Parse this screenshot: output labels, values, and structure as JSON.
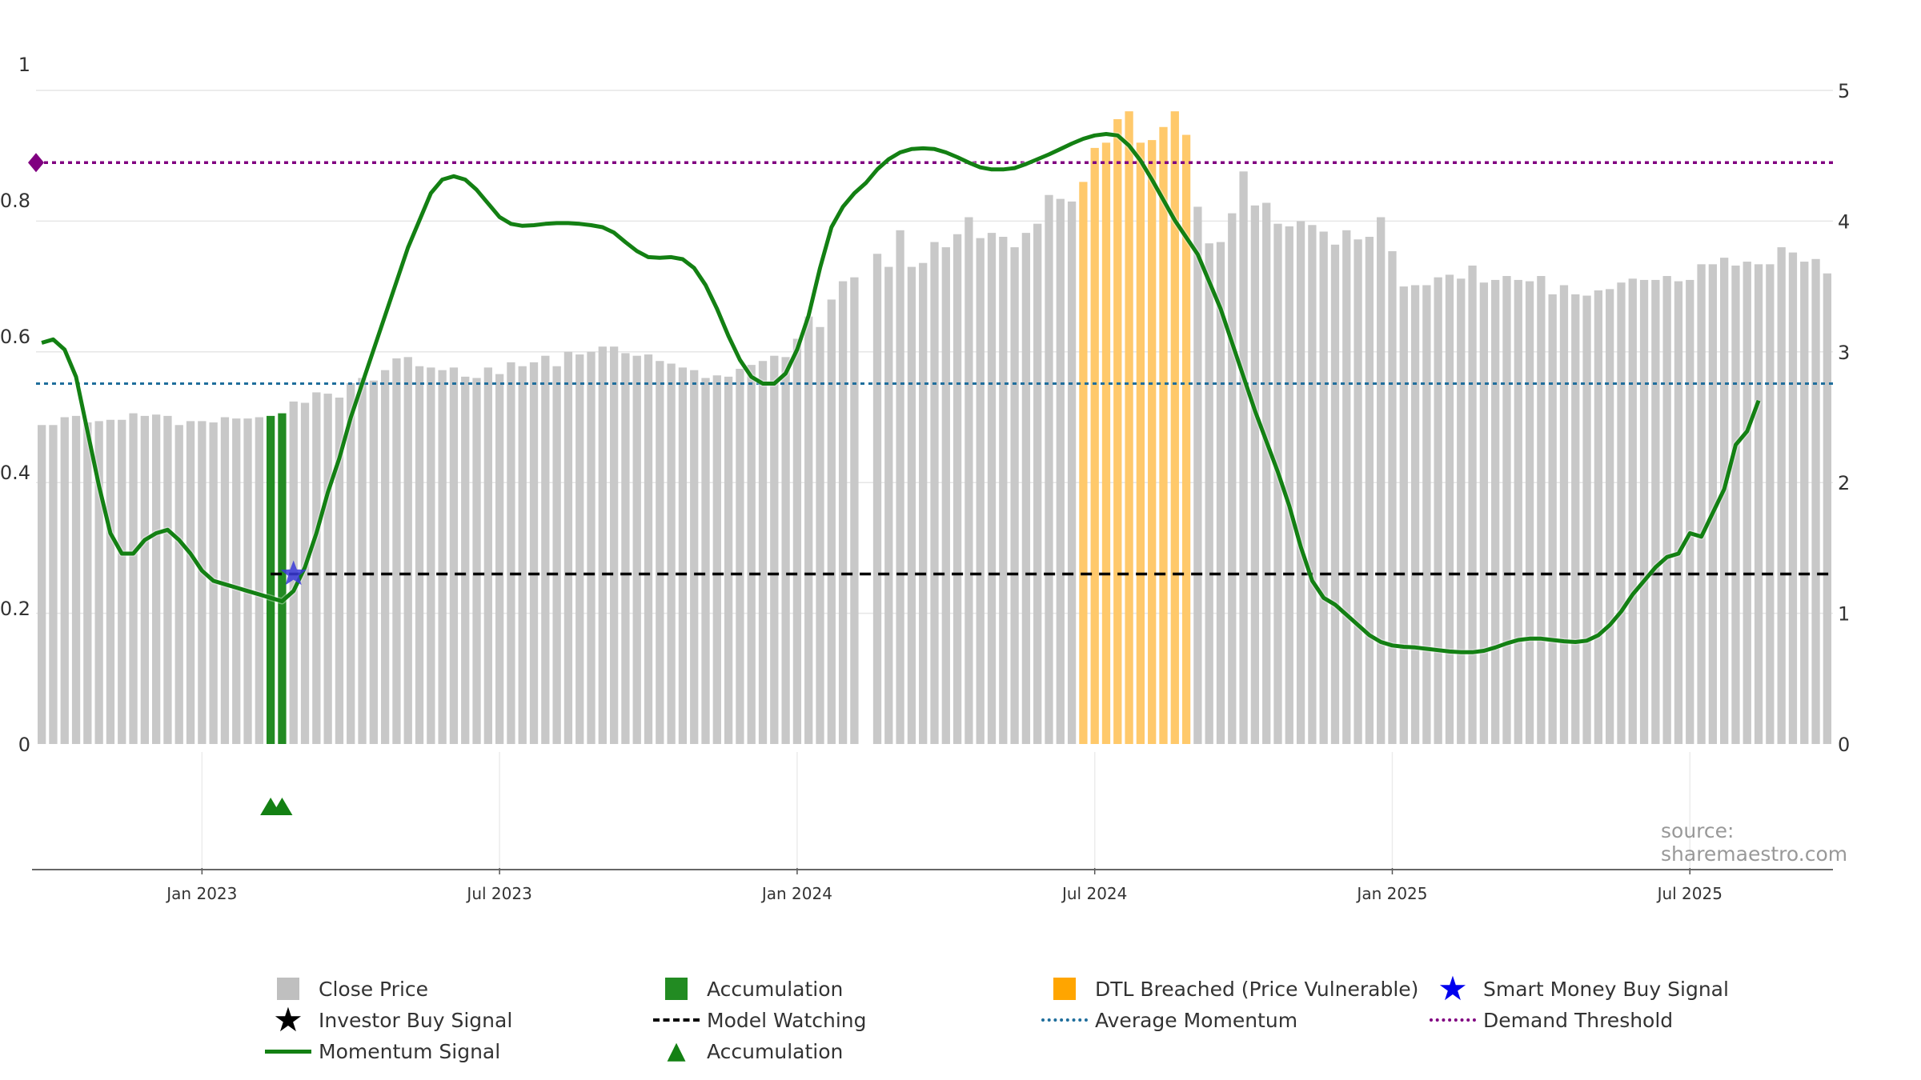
{
  "chart_data": {
    "type": "bar+line",
    "source": "source: sharemaestro.com",
    "left_axis": {
      "min": 0,
      "max": 1,
      "ticks": [
        "0",
        "0.2",
        "0.4",
        "0.6",
        "0.8",
        "1"
      ]
    },
    "right_axis": {
      "min": 0,
      "max": 5,
      "ticks": [
        "0",
        "1",
        "2",
        "3",
        "4",
        "5"
      ]
    },
    "x_axis": {
      "ticks": [
        {
          "label": "Jan 2023",
          "week": 14
        },
        {
          "label": "Jul 2023",
          "week": 40
        },
        {
          "label": "Jan 2024",
          "week": 66
        },
        {
          "label": "Jul 2024",
          "week": 92
        },
        {
          "label": "Jan 2025",
          "week": 118
        },
        {
          "label": "Jul 2025",
          "week": 144
        }
      ]
    },
    "close_price": [
      2.44,
      2.44,
      2.5,
      2.51,
      2.46,
      2.47,
      2.48,
      2.48,
      2.53,
      2.51,
      2.52,
      2.51,
      2.44,
      2.47,
      2.47,
      2.46,
      2.5,
      2.49,
      2.49,
      2.5,
      2.51,
      2.53,
      2.62,
      2.61,
      2.69,
      2.68,
      2.65,
      2.76,
      2.8,
      2.78,
      2.86,
      2.95,
      2.96,
      2.89,
      2.88,
      2.86,
      2.88,
      2.81,
      2.8,
      2.88,
      2.83,
      2.92,
      2.89,
      2.92,
      2.97,
      2.89,
      3.0,
      2.98,
      3.0,
      3.04,
      3.04,
      2.99,
      2.97,
      2.98,
      2.93,
      2.91,
      2.88,
      2.86,
      2.8,
      2.82,
      2.81,
      2.87,
      2.9,
      2.93,
      2.97,
      2.96,
      3.1,
      3.27,
      3.19,
      3.4,
      3.54,
      3.57,
      0,
      3.75,
      3.65,
      3.93,
      3.65,
      3.68,
      3.84,
      3.8,
      3.9,
      4.03,
      3.87,
      3.91,
      3.88,
      3.8,
      3.91,
      3.98,
      4.2,
      4.17,
      4.15,
      4.3,
      4.56,
      4.6,
      4.78,
      4.84,
      4.6,
      4.62,
      4.72,
      4.84,
      4.66,
      4.11,
      3.83,
      3.84,
      4.06,
      4.38,
      4.12,
      4.14,
      3.98,
      3.96,
      4.0,
      3.97,
      3.92,
      3.82,
      3.93,
      3.86,
      3.88,
      4.03,
      3.77,
      3.5,
      3.51,
      3.51,
      3.57,
      3.59,
      3.56,
      3.66,
      3.53,
      3.55,
      3.58,
      3.55,
      3.54,
      3.58,
      3.44,
      3.51,
      3.44,
      3.43,
      3.47,
      3.48,
      3.53,
      3.56,
      3.55,
      3.55,
      3.58,
      3.54,
      3.55,
      3.67,
      3.67,
      3.72,
      3.66,
      3.69,
      3.67,
      3.67,
      3.8,
      3.76,
      3.69,
      3.71,
      3.6
    ],
    "accumulation_bars": [
      20,
      21
    ],
    "dtl_breached_bars": [
      91,
      92,
      93,
      94,
      95,
      96,
      97,
      98,
      99,
      100
    ],
    "momentum_signal": [
      [
        0,
        0.59
      ],
      [
        1,
        0.595
      ],
      [
        2,
        0.58
      ],
      [
        3,
        0.54
      ],
      [
        4,
        0.46
      ],
      [
        5,
        0.38
      ],
      [
        6,
        0.31
      ],
      [
        7,
        0.28
      ],
      [
        8,
        0.28
      ],
      [
        9,
        0.3
      ],
      [
        10,
        0.31
      ],
      [
        11,
        0.315
      ],
      [
        12,
        0.3
      ],
      [
        13,
        0.28
      ],
      [
        14,
        0.255
      ],
      [
        15,
        0.24
      ],
      [
        16,
        0.235
      ],
      [
        17,
        0.23
      ],
      [
        18,
        0.225
      ],
      [
        19,
        0.22
      ],
      [
        20,
        0.215
      ],
      [
        21,
        0.21
      ],
      [
        22,
        0.225
      ],
      [
        23,
        0.26
      ],
      [
        24,
        0.31
      ],
      [
        25,
        0.37
      ],
      [
        26,
        0.42
      ],
      [
        27,
        0.48
      ],
      [
        28,
        0.53
      ],
      [
        29,
        0.58
      ],
      [
        30,
        0.63
      ],
      [
        31,
        0.68
      ],
      [
        32,
        0.73
      ],
      [
        33,
        0.77
      ],
      [
        34,
        0.81
      ],
      [
        35,
        0.83
      ],
      [
        36,
        0.835
      ],
      [
        37,
        0.83
      ],
      [
        38,
        0.815
      ],
      [
        39,
        0.795
      ],
      [
        40,
        0.775
      ],
      [
        41,
        0.765
      ],
      [
        42,
        0.762
      ],
      [
        43,
        0.763
      ],
      [
        44,
        0.765
      ],
      [
        45,
        0.766
      ],
      [
        46,
        0.766
      ],
      [
        47,
        0.765
      ],
      [
        48,
        0.763
      ],
      [
        49,
        0.76
      ],
      [
        50,
        0.752
      ],
      [
        51,
        0.738
      ],
      [
        52,
        0.725
      ],
      [
        53,
        0.716
      ],
      [
        54,
        0.715
      ],
      [
        55,
        0.716
      ],
      [
        56,
        0.713
      ],
      [
        57,
        0.7
      ],
      [
        58,
        0.675
      ],
      [
        59,
        0.64
      ],
      [
        60,
        0.6
      ],
      [
        61,
        0.565
      ],
      [
        62,
        0.54
      ],
      [
        63,
        0.53
      ],
      [
        64,
        0.53
      ],
      [
        65,
        0.545
      ],
      [
        66,
        0.58
      ],
      [
        67,
        0.63
      ],
      [
        68,
        0.7
      ],
      [
        69,
        0.76
      ],
      [
        70,
        0.79
      ],
      [
        71,
        0.81
      ],
      [
        72,
        0.825
      ],
      [
        73,
        0.845
      ],
      [
        74,
        0.86
      ],
      [
        75,
        0.87
      ],
      [
        76,
        0.875
      ],
      [
        77,
        0.876
      ],
      [
        78,
        0.875
      ],
      [
        79,
        0.87
      ],
      [
        80,
        0.863
      ],
      [
        81,
        0.855
      ],
      [
        82,
        0.848
      ],
      [
        83,
        0.845
      ],
      [
        84,
        0.845
      ],
      [
        85,
        0.847
      ],
      [
        86,
        0.853
      ],
      [
        87,
        0.86
      ],
      [
        88,
        0.867
      ],
      [
        89,
        0.875
      ],
      [
        90,
        0.883
      ],
      [
        91,
        0.89
      ],
      [
        92,
        0.895
      ],
      [
        93,
        0.897
      ],
      [
        94,
        0.895
      ],
      [
        95,
        0.88
      ],
      [
        96,
        0.858
      ],
      [
        97,
        0.83
      ],
      [
        98,
        0.8
      ],
      [
        99,
        0.77
      ],
      [
        100,
        0.745
      ],
      [
        101,
        0.72
      ],
      [
        102,
        0.68
      ],
      [
        103,
        0.64
      ],
      [
        104,
        0.59
      ],
      [
        105,
        0.54
      ],
      [
        106,
        0.49
      ],
      [
        107,
        0.445
      ],
      [
        108,
        0.4
      ],
      [
        109,
        0.35
      ],
      [
        110,
        0.29
      ],
      [
        111,
        0.24
      ],
      [
        112,
        0.215
      ],
      [
        113,
        0.205
      ],
      [
        114,
        0.19
      ],
      [
        115,
        0.175
      ],
      [
        116,
        0.16
      ],
      [
        117,
        0.15
      ],
      [
        118,
        0.145
      ],
      [
        119,
        0.143
      ],
      [
        120,
        0.142
      ],
      [
        121,
        0.14
      ],
      [
        122,
        0.138
      ],
      [
        123,
        0.136
      ],
      [
        124,
        0.135
      ],
      [
        125,
        0.135
      ],
      [
        126,
        0.137
      ],
      [
        127,
        0.142
      ],
      [
        128,
        0.148
      ],
      [
        129,
        0.153
      ],
      [
        130,
        0.155
      ],
      [
        131,
        0.155
      ],
      [
        132,
        0.153
      ],
      [
        133,
        0.151
      ],
      [
        134,
        0.15
      ],
      [
        135,
        0.152
      ],
      [
        136,
        0.16
      ],
      [
        137,
        0.175
      ],
      [
        138,
        0.195
      ],
      [
        139,
        0.22
      ],
      [
        140,
        0.24
      ],
      [
        141,
        0.26
      ],
      [
        142,
        0.275
      ],
      [
        143,
        0.28
      ],
      [
        144,
        0.31
      ],
      [
        145,
        0.305
      ],
      [
        146,
        0.34
      ],
      [
        147,
        0.375
      ],
      [
        148,
        0.44
      ],
      [
        149,
        0.46
      ],
      [
        150,
        0.505
      ]
    ],
    "model_watching": {
      "value": 0.25,
      "from_week": 20,
      "to_week": 154
    },
    "average_momentum": 0.53,
    "demand_threshold": 0.855,
    "smart_money_buy_signal": {
      "week": 22,
      "value": 0.25
    },
    "accumulation_markers": [
      20,
      21
    ],
    "legend": [
      {
        "label": "Close Price",
        "symbol": "square",
        "color": "#bfbfbf"
      },
      {
        "label": "Accumulation",
        "symbol": "square",
        "color": "#228b22"
      },
      {
        "label": "DTL Breached (Price Vulnerable)",
        "symbol": "square",
        "color": "#ffa500"
      },
      {
        "label": "Smart Money Buy Signal",
        "symbol": "star",
        "color": "#0000ee"
      },
      {
        "label": "Investor Buy Signal",
        "symbol": "star",
        "color": "#000000"
      },
      {
        "label": "Model Watching",
        "symbol": "dash",
        "color": "#000000"
      },
      {
        "label": "Average Momentum",
        "symbol": "dot",
        "color": "#1f6e9c"
      },
      {
        "label": "Demand Threshold",
        "symbol": "dot",
        "color": "#800080"
      },
      {
        "label": "Momentum Signal",
        "symbol": "line",
        "color": "#138013"
      },
      {
        "label": "Accumulation",
        "symbol": "triangle",
        "color": "#138013"
      }
    ]
  }
}
